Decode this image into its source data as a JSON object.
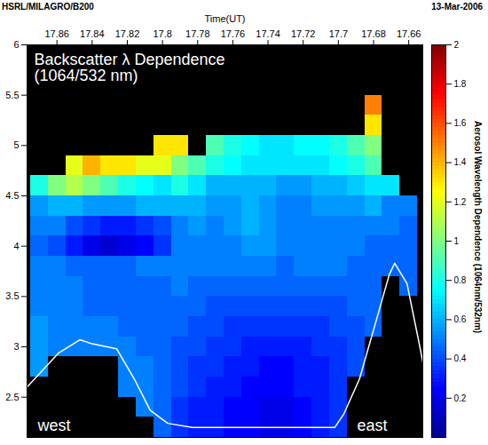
{
  "chart_data": {
    "type": "heatmap",
    "title": "HSRL/MILAGRO/B200",
    "date": "13-Mar-2006",
    "xlabel": "Time(UT)",
    "annotations": [
      "Backscatter λ Dependence (1064/532 nm)",
      "west",
      "east"
    ],
    "xlim": [
      17.877,
      17.652
    ],
    "xticks": [
      17.86,
      17.84,
      17.82,
      17.8,
      17.78,
      17.76,
      17.74,
      17.72,
      17.7,
      17.68,
      17.66
    ],
    "ylim": [
      2.1,
      6
    ],
    "yticks": [
      2.5,
      3,
      3.5,
      4,
      4.5,
      5,
      5.5,
      6
    ],
    "cells": {
      "x": [
        17.87,
        17.86,
        17.85,
        17.84,
        17.83,
        17.82,
        17.81,
        17.8,
        17.79,
        17.78,
        17.77,
        17.76,
        17.75,
        17.74,
        17.73,
        17.72,
        17.71,
        17.7,
        17.69,
        17.68,
        17.67,
        17.66
      ],
      "y": [
        2.2,
        2.4,
        2.6,
        2.8,
        3.0,
        3.2,
        3.4,
        3.6,
        3.8,
        4.0,
        4.2,
        4.4,
        4.6,
        4.8,
        5.0,
        5.2,
        5.4
      ],
      "values": [
        [
          null,
          null,
          null,
          null,
          null,
          null,
          null,
          0.45,
          0.35,
          0.3,
          0.3,
          0.25,
          0.25,
          0.2,
          0.2,
          0.25,
          0.3,
          0.35,
          null,
          null,
          null,
          null
        ],
        [
          null,
          null,
          null,
          null,
          null,
          null,
          0.5,
          0.45,
          0.35,
          0.3,
          0.3,
          0.25,
          0.25,
          0.2,
          0.2,
          0.25,
          0.3,
          0.35,
          null,
          null,
          null,
          null
        ],
        [
          null,
          null,
          null,
          null,
          null,
          0.5,
          0.5,
          0.45,
          0.4,
          0.35,
          0.3,
          0.3,
          0.25,
          0.25,
          0.25,
          0.3,
          0.3,
          0.35,
          null,
          null,
          null,
          null
        ],
        [
          0.55,
          null,
          null,
          null,
          null,
          0.5,
          0.5,
          0.45,
          0.4,
          0.35,
          0.35,
          0.3,
          0.3,
          0.25,
          0.25,
          0.3,
          0.3,
          0.35,
          0.4,
          null,
          null,
          null
        ],
        [
          0.55,
          0.5,
          0.5,
          0.5,
          0.5,
          0.5,
          0.45,
          0.45,
          0.4,
          0.4,
          0.35,
          0.35,
          0.3,
          0.3,
          0.3,
          0.3,
          0.35,
          0.35,
          0.4,
          null,
          null,
          null
        ],
        [
          0.55,
          0.5,
          0.5,
          0.5,
          0.5,
          0.45,
          0.45,
          0.45,
          0.45,
          0.4,
          0.4,
          0.35,
          0.35,
          0.35,
          0.35,
          0.35,
          0.35,
          0.4,
          0.4,
          0.45,
          null,
          null
        ],
        [
          0.5,
          0.5,
          0.5,
          0.45,
          0.45,
          0.45,
          0.45,
          0.45,
          0.45,
          0.45,
          0.4,
          0.4,
          0.4,
          0.4,
          0.4,
          0.4,
          0.4,
          0.4,
          0.45,
          0.45,
          null,
          null
        ],
        [
          0.5,
          0.5,
          0.5,
          0.45,
          0.45,
          0.45,
          0.45,
          0.45,
          0.5,
          0.45,
          0.45,
          0.45,
          0.45,
          0.45,
          0.45,
          0.45,
          0.45,
          0.45,
          0.45,
          0.45,
          null,
          0.45
        ],
        [
          0.5,
          0.5,
          0.45,
          0.45,
          0.45,
          0.45,
          0.5,
          0.5,
          0.5,
          0.5,
          0.5,
          0.5,
          0.5,
          0.5,
          0.45,
          0.5,
          0.5,
          0.5,
          0.45,
          0.45,
          0.45,
          0.45
        ],
        [
          0.45,
          0.4,
          0.3,
          0.2,
          0.15,
          0.2,
          0.25,
          0.35,
          0.5,
          0.5,
          0.5,
          0.5,
          0.55,
          0.55,
          0.5,
          0.5,
          0.5,
          0.5,
          0.5,
          0.45,
          0.45,
          0.45
        ],
        [
          0.5,
          0.5,
          0.4,
          0.35,
          0.3,
          0.3,
          0.35,
          0.4,
          0.5,
          0.55,
          0.5,
          0.55,
          0.6,
          0.55,
          0.5,
          0.5,
          0.5,
          0.5,
          0.5,
          0.5,
          0.5,
          0.45
        ],
        [
          0.55,
          0.6,
          0.6,
          0.55,
          0.55,
          0.55,
          0.6,
          0.6,
          0.6,
          0.6,
          0.55,
          0.55,
          0.6,
          0.55,
          0.5,
          0.5,
          0.55,
          0.55,
          0.55,
          0.6,
          0.5,
          0.5
        ],
        [
          0.8,
          1.0,
          1.1,
          1.0,
          0.9,
          0.8,
          0.75,
          0.7,
          0.8,
          0.7,
          0.6,
          0.6,
          0.6,
          0.6,
          0.55,
          0.55,
          0.6,
          0.6,
          0.65,
          0.7,
          0.7,
          null
        ],
        [
          null,
          null,
          1.2,
          1.4,
          1.3,
          1.3,
          1.2,
          1.2,
          1.0,
          0.9,
          0.8,
          0.75,
          0.7,
          0.7,
          0.7,
          0.7,
          0.7,
          0.75,
          0.8,
          0.9,
          null,
          null
        ],
        [
          null,
          null,
          null,
          null,
          null,
          null,
          null,
          1.3,
          1.3,
          null,
          0.9,
          0.8,
          0.75,
          0.7,
          0.7,
          0.75,
          0.75,
          0.8,
          0.9,
          1.0,
          null,
          null
        ],
        [
          null,
          null,
          null,
          null,
          null,
          null,
          null,
          null,
          null,
          null,
          null,
          null,
          null,
          null,
          null,
          null,
          null,
          null,
          null,
          1.3,
          null,
          null
        ],
        [
          null,
          null,
          null,
          null,
          null,
          null,
          null,
          null,
          null,
          null,
          null,
          null,
          null,
          null,
          null,
          null,
          null,
          null,
          null,
          1.5,
          null,
          null
        ]
      ]
    },
    "terrain": {
      "color": "white",
      "x": [
        17.877,
        17.859,
        17.847,
        17.84,
        17.826,
        17.816,
        17.807,
        17.797,
        17.783,
        17.702,
        17.697,
        17.688,
        17.678,
        17.671,
        17.668,
        17.661,
        17.654,
        17.652
      ],
      "values": [
        2.6,
        2.94,
        3.07,
        3.03,
        2.98,
        2.68,
        2.37,
        2.24,
        2.2,
        2.2,
        2.33,
        2.68,
        3.29,
        3.72,
        3.83,
        3.63,
        3.03,
        2.85
      ]
    },
    "colorbar": {
      "label": "Aerosol Wavelength Dependence (1064nm/532nm)",
      "range": [
        0,
        2
      ],
      "ticks": [
        0.2,
        0.4,
        0.6,
        0.8,
        1,
        1.2,
        1.4,
        1.6,
        1.8,
        2
      ]
    }
  }
}
